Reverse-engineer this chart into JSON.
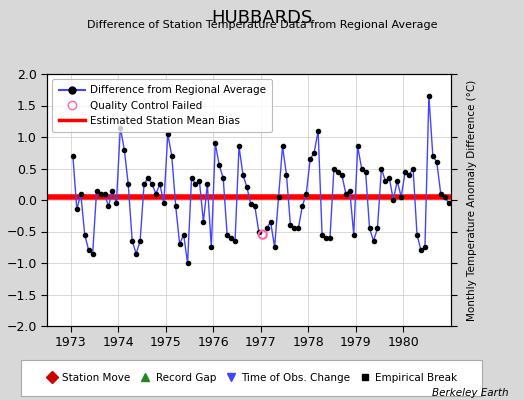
{
  "title": "HUBBARDS",
  "subtitle": "Difference of Station Temperature Data from Regional Average",
  "ylabel": "Monthly Temperature Anomaly Difference (°C)",
  "xlim": [
    1972.5,
    1981.0
  ],
  "ylim": [
    -2,
    2
  ],
  "yticks": [
    -2,
    -1.5,
    -1,
    -0.5,
    0,
    0.5,
    1,
    1.5,
    2
  ],
  "xticks": [
    1973,
    1974,
    1975,
    1976,
    1977,
    1978,
    1979,
    1980
  ],
  "mean_bias": 0.05,
  "background_color": "#d8d8d8",
  "plot_bg_color": "#ffffff",
  "line_color": "#4444ff",
  "marker_color": "#000000",
  "bias_color": "#ff0000",
  "berkeley_earth_text": "Berkeley Earth",
  "qc_failed_index": 48,
  "values": [
    0.7,
    -0.15,
    0.1,
    -0.55,
    -0.8,
    -0.85,
    0.15,
    0.1,
    0.1,
    -0.1,
    0.15,
    -0.05,
    1.15,
    0.8,
    0.25,
    -0.65,
    -0.85,
    -0.65,
    0.25,
    0.35,
    0.25,
    0.1,
    0.25,
    -0.05,
    1.05,
    0.7,
    -0.1,
    -0.7,
    -0.55,
    -1.0,
    0.35,
    0.25,
    0.3,
    -0.35,
    0.25,
    -0.75,
    0.9,
    0.55,
    0.35,
    -0.55,
    -0.6,
    -0.65,
    0.85,
    0.4,
    0.2,
    -0.07,
    -0.1,
    -0.5,
    -0.55,
    -0.45,
    -0.35,
    -0.75,
    0.05,
    0.85,
    0.4,
    -0.4,
    -0.45,
    -0.45,
    -0.1,
    0.1,
    0.65,
    0.75,
    1.1,
    -0.55,
    -0.6,
    -0.6,
    0.5,
    0.45,
    0.4,
    0.1,
    0.15,
    -0.55,
    0.85,
    0.5,
    0.45,
    -0.45,
    -0.65,
    -0.45,
    0.5,
    0.3,
    0.35,
    0.0,
    0.3,
    0.05,
    0.45,
    0.4,
    0.5,
    -0.55,
    -0.8,
    -0.75,
    1.65,
    0.7,
    0.6,
    0.1,
    0.05,
    -0.05
  ]
}
